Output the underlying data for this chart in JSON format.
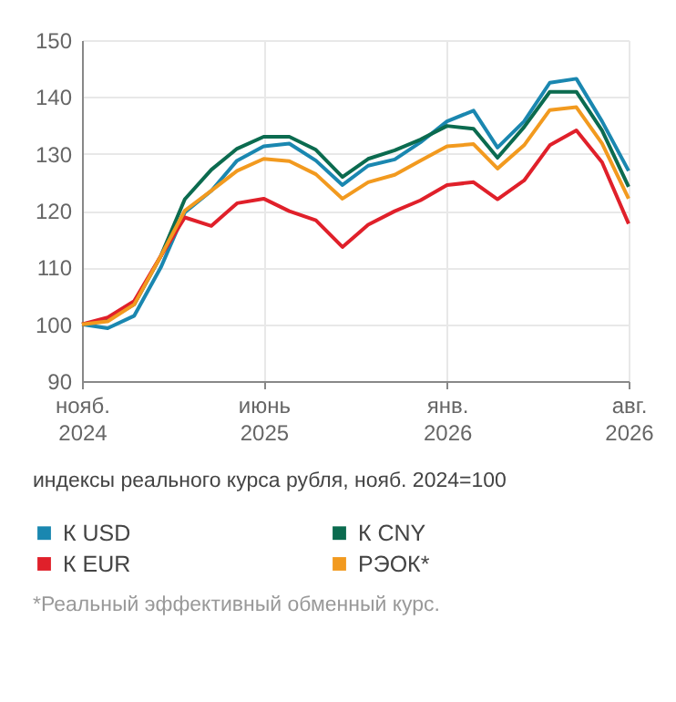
{
  "chart_data": {
    "type": "line",
    "x": [
      "2024-11",
      "2024-12",
      "2025-01",
      "2025-02",
      "2025-03",
      "2025-04",
      "2025-05",
      "2025-06",
      "2025-07",
      "2025-08",
      "2025-09",
      "2025-10",
      "2025-11",
      "2025-12",
      "2026-01",
      "2026-02",
      "2026-03",
      "2026-04",
      "2026-05",
      "2026-06",
      "2026-07",
      "2026-08"
    ],
    "series": [
      {
        "name": "К USD",
        "color": "#1a87b0",
        "values": [
          100,
          99.3,
          101.5,
          110,
          119.7,
          123.5,
          128.8,
          131.3,
          131.8,
          128.8,
          124.5,
          127.9,
          129,
          132,
          135.7,
          137.6,
          131.1,
          135.7,
          142.5,
          143.2,
          135.7,
          127
        ]
      },
      {
        "name": "К CNY",
        "color": "#0b6b4f",
        "values": [
          100,
          100.8,
          103.5,
          112,
          122,
          127.2,
          130.9,
          133,
          133,
          130.7,
          125.9,
          129.1,
          130.6,
          132.5,
          134.9,
          134.4,
          129.3,
          134.7,
          140.9,
          140.9,
          134.1,
          124.2
        ]
      },
      {
        "name": "К EUR",
        "color": "#e0202a",
        "values": [
          100,
          101.2,
          104.1,
          112,
          118.8,
          117.3,
          121.3,
          122.1,
          119.9,
          118.3,
          113.6,
          117.5,
          119.9,
          121.8,
          124.5,
          125,
          122,
          125.3,
          131.5,
          134.1,
          128.5,
          117.7
        ]
      },
      {
        "name": "РЭОК*",
        "color": "#f29a1f",
        "values": [
          100,
          100.5,
          103.5,
          112,
          120,
          123.5,
          127,
          129.1,
          128.7,
          126.4,
          122.1,
          125,
          126.3,
          128.8,
          131.3,
          131.7,
          127.4,
          131.5,
          137.7,
          138.2,
          131.8,
          122.1
        ]
      }
    ],
    "xlim": [
      "2024-11",
      "2026-08"
    ],
    "xticks": [
      {
        "value": "2024-11",
        "label": "нояб. 2024"
      },
      {
        "value": "2025-06",
        "label": "июнь 2025"
      },
      {
        "value": "2026-01",
        "label": "янв. 2026"
      },
      {
        "value": "2026-08",
        "label": "авг. 2026"
      }
    ],
    "ylim": [
      90,
      150
    ],
    "yticks": [
      90,
      100,
      110,
      120,
      130,
      140,
      150
    ],
    "grid": true,
    "legend": "bottom",
    "line_style": "solid",
    "marker": "none",
    "annotations": [
      "индексы реального курса рубля, нояб. 2024=100",
      "*Реальный эффективный обменный курс."
    ]
  }
}
